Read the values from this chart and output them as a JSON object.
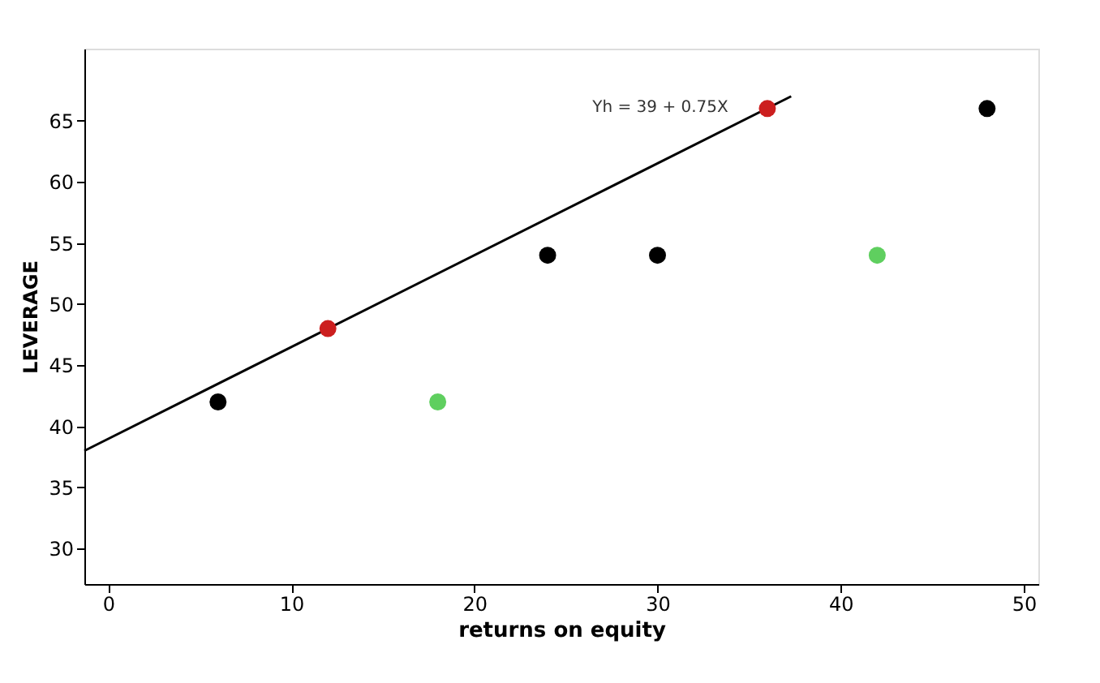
{
  "chart_data": {
    "type": "scatter",
    "xlabel": "returns on equity",
    "ylabel": "LEVERAGE",
    "xlim": [
      -1.3,
      50.8
    ],
    "ylim": [
      27.1,
      70.9
    ],
    "xticks": [
      0,
      10,
      20,
      30,
      40,
      50
    ],
    "yticks": [
      30,
      35,
      40,
      45,
      50,
      55,
      60,
      65
    ],
    "grid": false,
    "marker": "circle",
    "annotations": [
      "Yh = 39 + 0.75X"
    ],
    "series": [
      {
        "type": "line",
        "color": "#000000",
        "x": [
          -1.3,
          37.3
        ],
        "values": [
          38.0,
          67.0
        ],
        "line_style": "solid",
        "marker": "none"
      },
      {
        "color": "#000000",
        "x": [
          6,
          24,
          30,
          48
        ],
        "values": [
          42,
          54,
          54,
          66
        ]
      },
      {
        "color": "#cc1f1f",
        "x": [
          12,
          36
        ],
        "values": [
          48,
          66
        ]
      },
      {
        "color": "#5fcf5f",
        "x": [
          18,
          42
        ],
        "values": [
          42,
          54
        ]
      }
    ]
  }
}
